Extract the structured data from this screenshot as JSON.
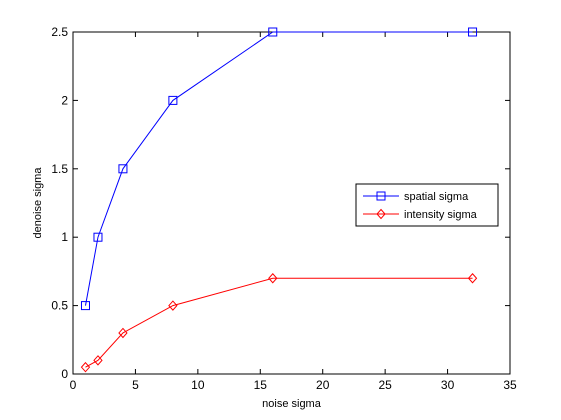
{
  "chart_data": {
    "type": "line",
    "title": "",
    "xlabel": "noise sigma",
    "ylabel": "denoise sigma",
    "xlim": [
      0,
      35
    ],
    "ylim": [
      0,
      2.5
    ],
    "xticks": [
      0,
      5,
      10,
      15,
      20,
      25,
      30,
      35
    ],
    "yticks": [
      0,
      0.5,
      1,
      1.5,
      2,
      2.5
    ],
    "grid": false,
    "legend_position": "right",
    "x": [
      1,
      2,
      4,
      8,
      16,
      32
    ],
    "series": [
      {
        "name": "spatial sigma",
        "values": [
          0.5,
          1.0,
          1.5,
          2.0,
          2.5,
          2.5
        ],
        "color": "#0000ff",
        "marker": "square"
      },
      {
        "name": "intensity sigma",
        "values": [
          0.05,
          0.1,
          0.3,
          0.5,
          0.7,
          0.7
        ],
        "color": "#ff0000",
        "marker": "diamond"
      }
    ]
  }
}
